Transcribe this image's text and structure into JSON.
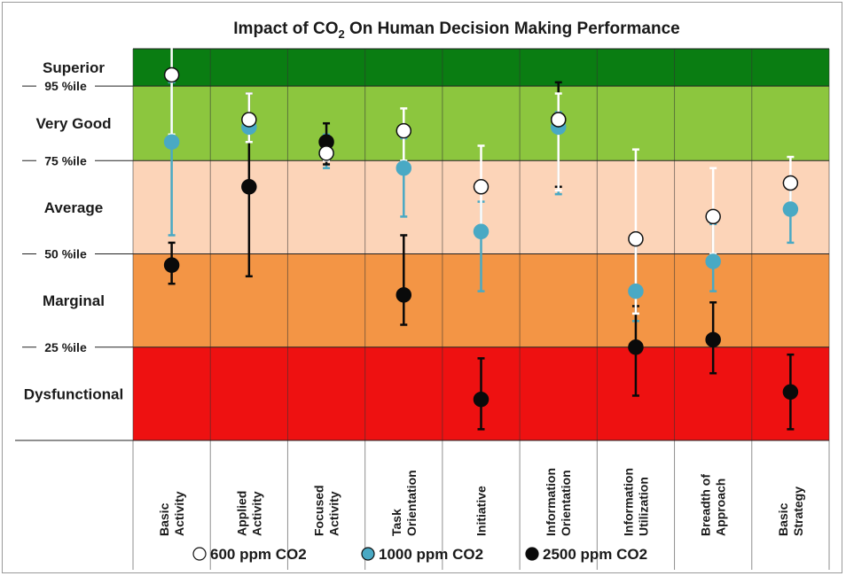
{
  "chart_data": {
    "type": "scatter",
    "title": "Impact of CO",
    "title_sub": "2",
    "title_rest": " On Human Decision Making Performance",
    "zones": [
      {
        "label": "Superior",
        "from": 95,
        "to": 105,
        "color": "#0a7d12"
      },
      {
        "label": "Very Good",
        "from": 75,
        "to": 95,
        "color": "#8cc63e"
      },
      {
        "label": "Average",
        "from": 50,
        "to": 75,
        "color": "#fcd4b8"
      },
      {
        "label": "Marginal",
        "from": 25,
        "to": 50,
        "color": "#f39545"
      },
      {
        "label": "Dysfunctional",
        "from": 0,
        "to": 25,
        "color": "#ee1111"
      }
    ],
    "percentile_labels": [
      {
        "label": "95 %ile",
        "value": 95
      },
      {
        "label": "75 %ile",
        "value": 75
      },
      {
        "label": "50 %ile",
        "value": 50
      },
      {
        "label": "25 %ile",
        "value": 25
      }
    ],
    "ylim": [
      0,
      105
    ],
    "categories": [
      [
        "Basic",
        "Activity"
      ],
      [
        "Applied",
        "Activity"
      ],
      [
        "Focused",
        "Activity"
      ],
      [
        "Task",
        "Orientation"
      ],
      [
        "Initiative"
      ],
      [
        "Information",
        "Orientation"
      ],
      [
        "Information",
        "Utilization"
      ],
      [
        "Breadth of",
        "Approach"
      ],
      [
        "Basic",
        "Strategy"
      ]
    ],
    "series": [
      {
        "name": "600 ppm CO2",
        "color": "#ffffff",
        "stroke": "#111111",
        "bar_color": "#ffffff",
        "values": [
          98,
          86,
          77,
          83,
          68,
          86,
          54,
          60,
          69
        ],
        "err_low": [
          82,
          80,
          75,
          75,
          55,
          67,
          34,
          50,
          63
        ],
        "err_high": [
          107,
          93,
          81,
          89,
          79,
          93,
          78,
          73,
          76
        ]
      },
      {
        "name": "1000 ppm CO2",
        "color": "#49a9c4",
        "stroke": "#49a9c4",
        "bar_color": "#49a9c4",
        "values": [
          80,
          84,
          77,
          73,
          56,
          84,
          40,
          48,
          62
        ],
        "err_low": [
          55,
          80,
          73,
          60,
          40,
          66,
          32,
          40,
          53
        ],
        "err_high": [
          96,
          87,
          82,
          81,
          64,
          88,
          55,
          58,
          69
        ]
      },
      {
        "name": "2500 ppm CO2",
        "color": "#0a0a0a",
        "stroke": "#0a0a0a",
        "bar_color": "#0a0a0a",
        "values": [
          47,
          68,
          80,
          39,
          11,
          86,
          25,
          27,
          13
        ],
        "err_low": [
          42,
          44,
          74,
          31,
          3,
          68,
          12,
          18,
          3
        ],
        "err_high": [
          53,
          93,
          85,
          55,
          22,
          96,
          36,
          37,
          23
        ]
      }
    ],
    "legend_position": "bottom-center",
    "grid": true
  }
}
